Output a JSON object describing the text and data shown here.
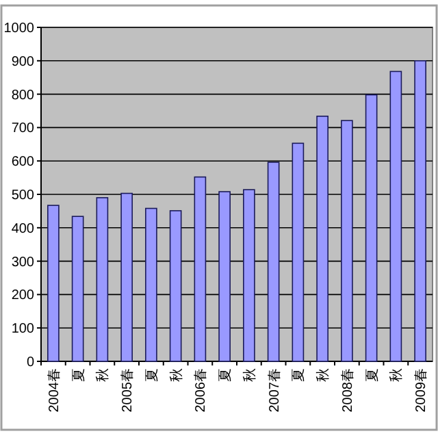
{
  "chart_data": {
    "type": "bar",
    "categories": [
      "2004春",
      "夏",
      "秋",
      "2005春",
      "夏",
      "秋",
      "2006春",
      "夏",
      "秋",
      "2007春",
      "夏",
      "秋",
      "2008春",
      "夏",
      "秋",
      "2009春"
    ],
    "values": [
      467,
      434,
      490,
      503,
      458,
      451,
      552,
      508,
      514,
      596,
      653,
      734,
      721,
      798,
      868,
      900
    ],
    "color": "#9999ff",
    "ylim": [
      0,
      1000
    ],
    "yticks": [
      0,
      100,
      200,
      300,
      400,
      500,
      600,
      700,
      800,
      900,
      1000
    ],
    "grid": "y"
  }
}
